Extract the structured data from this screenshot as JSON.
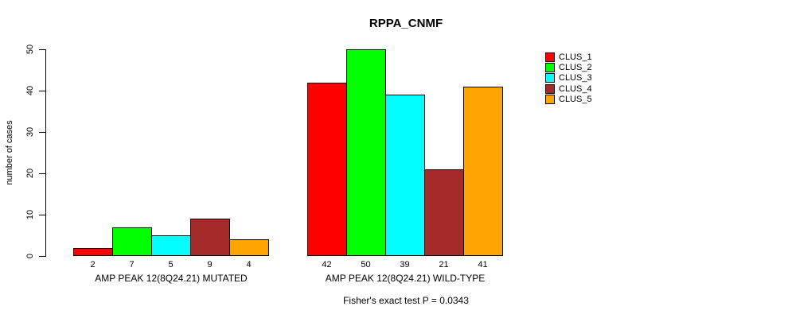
{
  "chart_data": {
    "type": "bar",
    "title": "RPPA_CNMF",
    "ylabel": "number of cases",
    "ylim": [
      0,
      50
    ],
    "yticks": [
      0,
      10,
      20,
      30,
      40,
      50
    ],
    "grid": false,
    "legend": {
      "position": "right",
      "entries": [
        {
          "label": "CLUS_1",
          "color": "#FF0000"
        },
        {
          "label": "CLUS_2",
          "color": "#00FF00"
        },
        {
          "label": "CLUS_3",
          "color": "#00FFFF"
        },
        {
          "label": "CLUS_4",
          "color": "#A52A2A"
        },
        {
          "label": "CLUS_5",
          "color": "#FFA500"
        }
      ]
    },
    "series_names": [
      "CLUS_1",
      "CLUS_2",
      "CLUS_3",
      "CLUS_4",
      "CLUS_5"
    ],
    "groups": [
      {
        "label": "AMP PEAK 12(8Q24.21) MUTATED",
        "values": [
          2,
          7,
          5,
          9,
          4
        ]
      },
      {
        "label": "AMP PEAK 12(8Q24.21) WILD-TYPE",
        "values": [
          42,
          50,
          39,
          21,
          41
        ]
      }
    ],
    "footer": "Fisher's exact test P = 0.0343"
  }
}
